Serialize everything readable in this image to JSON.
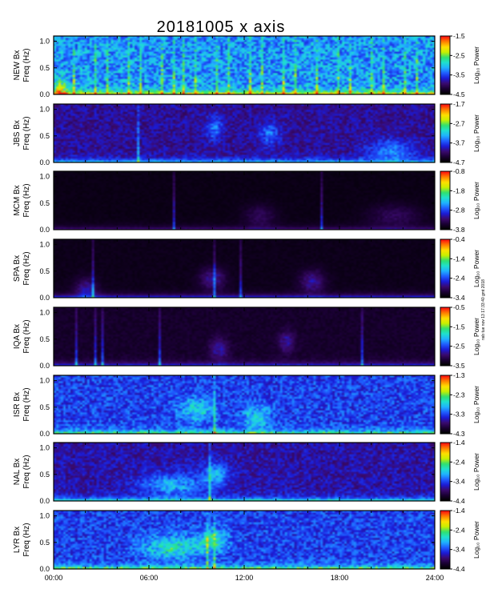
{
  "title": "20181005 x axis",
  "colors": {
    "colormap": [
      "#000000",
      "#1a0033",
      "#3a0a6e",
      "#1b1bd6",
      "#1f5cff",
      "#1fb0ff",
      "#1fe0d0",
      "#30e070",
      "#c8f000",
      "#ffe000",
      "#ff8000",
      "#ff1010"
    ],
    "axis": "#000000"
  },
  "chart_data": {
    "type": "heatmap",
    "title": "20181005 x axis",
    "xlabel": "",
    "x_tick_labels": [
      "00:00",
      "06:00",
      "12:00",
      "18:00",
      "24:00"
    ],
    "y_tick_labels": [
      "0.0",
      "0.5",
      "1.0"
    ],
    "ylim": [
      0,
      1.1
    ],
    "colorbar_label": "Log₁₀ Power",
    "side_note": "nsb tue nov 13 17:33:40 gmt 2018",
    "panels": [
      {
        "station": "NEW",
        "ylabel1": "NEW Bx",
        "ylabel2": "Freq (Hz)",
        "colorbar_ticks": [
          "-1.5",
          "-2.5",
          "-3.5",
          "-4.5"
        ],
        "brightness": 0.62,
        "background": 0.55,
        "stripes": [
          1.2,
          1.9,
          2.6,
          3.3,
          4.0,
          4.7,
          5.4,
          6.1,
          6.8,
          7.5,
          8.2,
          8.9,
          9.6,
          10.3,
          11.0,
          11.7,
          12.4,
          13.1,
          13.8,
          14.5,
          15.2,
          15.9,
          16.6,
          17.3,
          18.0,
          18.7,
          19.4,
          20.1,
          20.8,
          21.5,
          22.2,
          22.9
        ],
        "spots": [
          {
            "h": 0.3,
            "f": 0.07,
            "s": 0.5
          }
        ]
      },
      {
        "station": "JBS",
        "ylabel1": "JBS Bx",
        "ylabel2": "Freq (Hz)",
        "colorbar_ticks": [
          "-1.7",
          "-2.7",
          "-3.7",
          "-4.7"
        ],
        "brightness": 0.42,
        "background": 0.28,
        "stripes": [
          4.6,
          5.3
        ],
        "spots": [
          {
            "h": 10.1,
            "f": 0.65,
            "s": 0.5
          },
          {
            "h": 13.6,
            "f": 0.55,
            "s": 0.6
          },
          {
            "h": 21.3,
            "f": 0.2,
            "s": 1.5
          }
        ]
      },
      {
        "station": "MCM",
        "ylabel1": "MCM Bx",
        "ylabel2": "Freq (Hz)",
        "colorbar_ticks": [
          "-0.8",
          "-1.8",
          "-2.8",
          "-3.8"
        ],
        "brightness": 0.25,
        "background": 0.05,
        "stripes": [
          7.5,
          16.9
        ],
        "spots": [
          {
            "h": 13.0,
            "f": 0.25,
            "s": 1.0
          },
          {
            "h": 21.5,
            "f": 0.25,
            "s": 1.6
          }
        ]
      },
      {
        "station": "SPA",
        "ylabel1": "SPA Bx",
        "ylabel2": "Freq (Hz)",
        "colorbar_ticks": [
          "-0.4",
          "-1.4",
          "-2.4",
          "-3.4"
        ],
        "brightness": 0.4,
        "background": 0.06,
        "stripes": [
          1.3,
          1.6,
          2.4,
          9.6,
          10.1,
          11.8,
          23.3
        ],
        "spots": [
          {
            "h": 2.0,
            "f": 0.15,
            "s": 0.7
          },
          {
            "h": 10.0,
            "f": 0.35,
            "s": 0.8
          },
          {
            "h": 16.3,
            "f": 0.3,
            "s": 0.8
          }
        ]
      },
      {
        "station": "IQA",
        "ylabel1": "IQA Bx",
        "ylabel2": "Freq (Hz)",
        "colorbar_ticks": [
          "-0.5",
          "-1.5",
          "-2.5",
          "-3.5"
        ],
        "brightness": 0.35,
        "background": 0.1,
        "stripes": [
          1.0,
          1.4,
          1.9,
          2.6,
          3.0,
          4.9,
          5.5,
          6.6,
          19.5
        ],
        "spots": [
          {
            "h": 10.4,
            "f": 0.3,
            "s": 0.6
          },
          {
            "h": 14.7,
            "f": 0.45,
            "s": 0.5
          }
        ]
      },
      {
        "station": "ISR",
        "ylabel1": "ISR Bx",
        "ylabel2": "Freq (Hz)",
        "colorbar_ticks": [
          "-1.3",
          "-2.3",
          "-3.3",
          "-4.3"
        ],
        "brightness": 0.5,
        "background": 0.42,
        "stripes": [
          9.6,
          10.1,
          23.3
        ],
        "spots": [
          {
            "h": 9.0,
            "f": 0.45,
            "s": 1.0
          },
          {
            "h": 12.8,
            "f": 0.3,
            "s": 0.8
          }
        ]
      },
      {
        "station": "NAL",
        "ylabel1": "NAL Bx",
        "ylabel2": "Freq (Hz)",
        "colorbar_ticks": [
          "-1.4",
          "-2.4",
          "-3.4",
          "-4.4"
        ],
        "brightness": 0.52,
        "background": 0.3,
        "stripes": [
          9.8,
          10.2,
          23.3
        ],
        "spots": [
          {
            "h": 7.5,
            "f": 0.3,
            "s": 2.0
          },
          {
            "h": 10.2,
            "f": 0.5,
            "s": 0.8
          }
        ]
      },
      {
        "station": "LYR",
        "ylabel1": "LYR Bx",
        "ylabel2": "Freq (Hz)",
        "colorbar_ticks": [
          "-1.4",
          "-2.4",
          "-3.4",
          "-4.4"
        ],
        "brightness": 0.55,
        "background": 0.42,
        "stripes": [
          9.7,
          10.1,
          23.3
        ],
        "spots": [
          {
            "h": 7.5,
            "f": 0.4,
            "s": 1.8
          },
          {
            "h": 10.0,
            "f": 0.55,
            "s": 0.9
          }
        ]
      }
    ]
  }
}
